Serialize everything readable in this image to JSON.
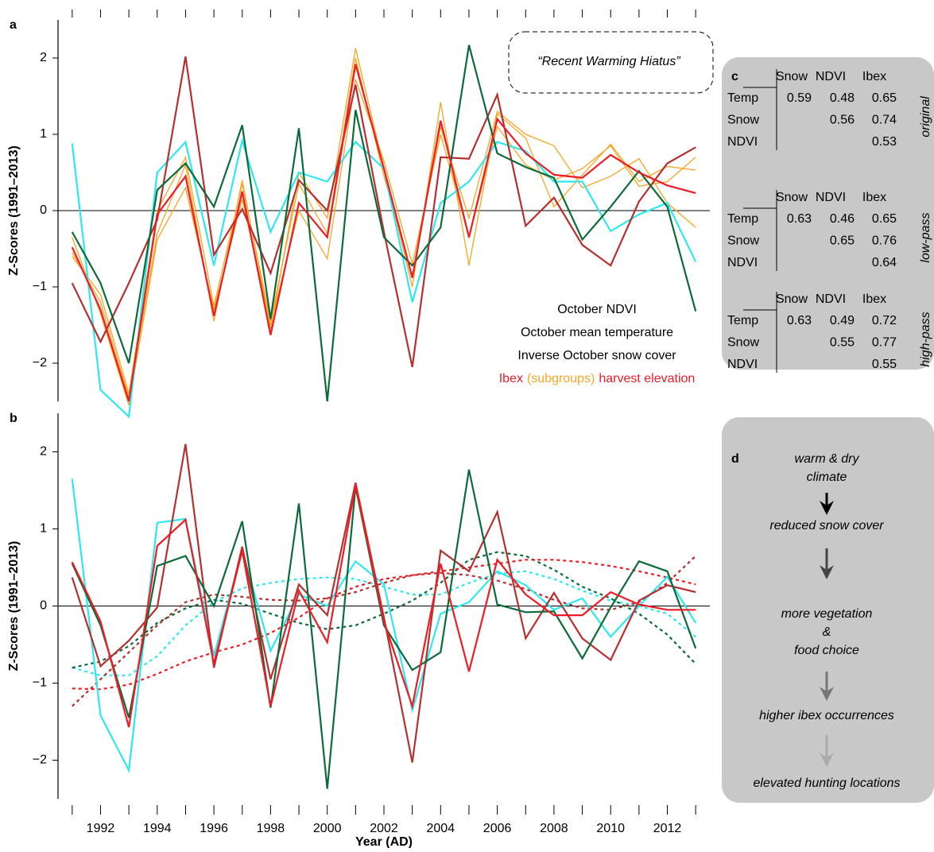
{
  "chart_data": [
    {
      "type": "line",
      "panel_label": "a",
      "ylabel": "Z-Scores (1991–2013)",
      "x": [
        1991,
        1992,
        1993,
        1994,
        1995,
        1996,
        1997,
        1998,
        1999,
        2000,
        2001,
        2002,
        2003,
        2004,
        2005,
        2006,
        2007,
        2008,
        2009,
        2010,
        2011,
        2012,
        2013
      ],
      "xlim": [
        1990.5,
        2013.5
      ],
      "xminorticks": [
        1991,
        1992,
        1993,
        1994,
        1995,
        1996,
        1997,
        1998,
        1999,
        2000,
        2001,
        2002,
        2003,
        2004,
        2005,
        2006,
        2007,
        2008,
        2009,
        2010,
        2011,
        2012,
        2013
      ],
      "ylim": [
        -2.5,
        2.5
      ],
      "yticks": [
        {
          "value": -2,
          "label": "−2"
        },
        {
          "value": -1,
          "label": "−1"
        },
        0,
        1,
        2
      ],
      "zero_line": true,
      "annotation": "“Recent Warming Hiatus”",
      "subgroups": {
        "name": "(subgroups)",
        "color": "#f5a623",
        "series": [
          [
            -0.55,
            -1.2,
            -2.45,
            -0.3,
            0.6,
            -1.45,
            0.4,
            -1.55,
            0.5,
            -0.1,
            2.13,
            0.55,
            -1.0,
            1.42,
            -0.72,
            1.27,
            0.95,
            0.05,
            0.47,
            0.87,
            0.38,
            0.58,
            0.53
          ],
          [
            -0.35,
            -1.35,
            -2.55,
            -0.38,
            0.3,
            -1.3,
            0.15,
            -1.5,
            0.0,
            -0.63,
            1.72,
            0.65,
            -0.7,
            1.0,
            -0.35,
            1.1,
            0.6,
            0.4,
            0.55,
            0.85,
            0.32,
            0.38,
            0.7
          ],
          [
            -0.6,
            -1.1,
            -2.4,
            0.0,
            0.7,
            -1.25,
            0.35,
            -1.45,
            0.35,
            -0.3,
            2.0,
            0.45,
            -0.85,
            1.1,
            -0.1,
            1.3,
            1.0,
            0.85,
            0.3,
            0.45,
            0.68,
            0.1,
            -0.22
          ]
        ]
      },
      "series": [
        {
          "name": "October NDVI",
          "color": "#0b6b3a",
          "values": [
            -0.28,
            -0.95,
            -2.0,
            0.27,
            0.62,
            0.05,
            1.12,
            -1.42,
            1.08,
            -2.5,
            1.32,
            -0.35,
            -0.72,
            -0.22,
            2.17,
            0.75,
            0.57,
            0.43,
            -0.38,
            0.05,
            0.52,
            0.05,
            -1.32
          ]
        },
        {
          "name": "October mean temperature",
          "color": "#b5302f",
          "values": [
            -0.95,
            -1.72,
            -0.95,
            -0.12,
            2.02,
            -0.58,
            0.02,
            -0.82,
            0.4,
            0.0,
            1.65,
            -0.28,
            -2.05,
            0.7,
            0.68,
            1.52,
            -0.2,
            0.17,
            -0.45,
            -0.72,
            0.12,
            0.62,
            0.83
          ]
        },
        {
          "name": "Inverse October snow cover",
          "color": "#2ee8f0",
          "values": [
            0.88,
            -2.35,
            -2.7,
            0.5,
            0.9,
            -0.72,
            0.92,
            -0.28,
            0.5,
            0.38,
            0.9,
            0.55,
            -1.2,
            0.1,
            0.38,
            0.9,
            0.78,
            0.38,
            0.38,
            -0.27,
            -0.05,
            0.1,
            -0.67
          ]
        },
        {
          "name": "Ibex",
          "color": "#ee1c25",
          "values": [
            -0.48,
            -1.3,
            -2.5,
            -0.05,
            0.45,
            -1.38,
            0.25,
            -1.63,
            0.1,
            -0.35,
            1.92,
            0.55,
            -0.88,
            1.18,
            -0.35,
            1.2,
            0.75,
            0.47,
            0.43,
            0.73,
            0.5,
            0.33,
            0.23
          ]
        }
      ],
      "legend_suffix": "harvest elevation"
    },
    {
      "type": "line",
      "panel_label": "b",
      "ylabel": "Z-Scores (1991–2013)",
      "xlabel": "Year (AD)",
      "x": [
        1991,
        1992,
        1993,
        1994,
        1995,
        1996,
        1997,
        1998,
        1999,
        2000,
        2001,
        2002,
        2003,
        2004,
        2005,
        2006,
        2007,
        2008,
        2009,
        2010,
        2011,
        2012,
        2013
      ],
      "xlim": [
        1990.5,
        2013.5
      ],
      "xminorticks": [
        1991,
        1992,
        1993,
        1994,
        1995,
        1996,
        1997,
        1998,
        1999,
        2000,
        2001,
        2002,
        2003,
        2004,
        2005,
        2006,
        2007,
        2008,
        2009,
        2010,
        2011,
        2012,
        2013
      ],
      "xticks": [
        1992,
        1994,
        1996,
        1998,
        2000,
        2002,
        2004,
        2006,
        2008,
        2010,
        2012
      ],
      "ylim": [
        -2.5,
        2.5
      ],
      "yticks": [
        {
          "value": -2,
          "label": "−2"
        },
        {
          "value": -1,
          "label": "−1"
        },
        0,
        1,
        2
      ],
      "zero_line": true,
      "series": [
        {
          "color": "#2ee8f0",
          "dashed": true,
          "values": [
            -0.8,
            -0.9,
            -0.9,
            -0.65,
            -0.25,
            0.05,
            0.23,
            0.3,
            0.35,
            0.37,
            0.35,
            0.25,
            0.15,
            0.15,
            0.3,
            0.42,
            0.45,
            0.35,
            0.2,
            0.07,
            0.0,
            -0.1,
            -0.4
          ]
        },
        {
          "color": "#0b6b3a",
          "dashed": true,
          "values": [
            -0.8,
            -0.72,
            -0.52,
            -0.22,
            -0.03,
            0.08,
            0.03,
            -0.1,
            -0.22,
            -0.3,
            -0.25,
            -0.1,
            0.07,
            0.3,
            0.6,
            0.7,
            0.65,
            0.47,
            0.25,
            0.1,
            -0.1,
            -0.37,
            -0.75
          ]
        },
        {
          "color": "#b5302f",
          "dashed": true,
          "values": [
            -1.3,
            -0.95,
            -0.6,
            -0.25,
            0.05,
            0.15,
            0.12,
            0.08,
            0.07,
            0.1,
            0.18,
            0.3,
            0.4,
            0.43,
            0.4,
            0.33,
            0.22,
            0.08,
            -0.03,
            -0.05,
            0.05,
            0.3,
            0.65
          ]
        },
        {
          "color": "#ee1c25",
          "dashed": true,
          "values": [
            -1.07,
            -1.08,
            -1.02,
            -0.88,
            -0.72,
            -0.6,
            -0.5,
            -0.35,
            -0.15,
            0.1,
            0.25,
            0.35,
            0.4,
            0.45,
            0.5,
            0.55,
            0.6,
            0.6,
            0.57,
            0.52,
            0.45,
            0.37,
            0.28
          ]
        },
        {
          "color": "#2ee8f0",
          "values": [
            1.65,
            -1.42,
            -2.13,
            1.08,
            1.13,
            -0.65,
            0.72,
            -0.58,
            0.15,
            0.0,
            0.58,
            0.28,
            -1.35,
            -0.1,
            0.05,
            0.45,
            0.27,
            -0.05,
            0.1,
            -0.4,
            0.0,
            0.38,
            -0.22
          ]
        },
        {
          "color": "#b5302f",
          "values": [
            0.37,
            -0.78,
            -0.45,
            -0.02,
            2.1,
            -0.8,
            0.77,
            -0.95,
            0.28,
            -0.12,
            1.6,
            -0.15,
            -2.03,
            0.72,
            0.45,
            1.22,
            -0.42,
            0.17,
            -0.42,
            -0.7,
            0.07,
            0.27,
            0.18
          ]
        },
        {
          "color": "#0b6b3a",
          "values": [
            0.55,
            -0.25,
            -1.45,
            0.52,
            0.65,
            0.0,
            1.1,
            -1.32,
            1.33,
            -2.37,
            1.55,
            -0.25,
            -0.83,
            -0.6,
            1.77,
            0.02,
            -0.08,
            -0.07,
            -0.68,
            -0.02,
            0.58,
            0.45,
            -0.55
          ]
        },
        {
          "color": "#ee1c25",
          "values": [
            0.57,
            -0.2,
            -1.57,
            0.78,
            1.12,
            -0.75,
            0.72,
            -1.3,
            0.2,
            -0.47,
            1.57,
            -0.2,
            -1.3,
            0.55,
            -0.85,
            0.6,
            0.15,
            -0.12,
            -0.12,
            0.18,
            0.02,
            -0.05,
            -0.05
          ]
        }
      ]
    }
  ],
  "table": {
    "label": "c",
    "columns": [
      {
        "text": "Snow",
        "color": "#2ee8f0"
      },
      {
        "text": "NDVI",
        "color": "#0b6b3a"
      },
      {
        "text": "Ibex",
        "color": "#ee1c25"
      }
    ],
    "row_labels": [
      {
        "text": "Temp",
        "color": "#b5302f"
      },
      {
        "text": "Snow",
        "color": "#2ee8f0"
      },
      {
        "text": "NDVI",
        "color": "#0b6b3a"
      }
    ],
    "blocks": [
      {
        "name": "original",
        "rows": [
          [
            0.59,
            0.48,
            0.65
          ],
          [
            0.56,
            0.74
          ],
          [
            0.53
          ]
        ]
      },
      {
        "name": "low-pass",
        "rows": [
          [
            0.63,
            0.46,
            0.65
          ],
          [
            0.65,
            0.76
          ],
          [
            0.64
          ]
        ]
      },
      {
        "name": "high-pass",
        "rows": [
          [
            0.63,
            0.49,
            0.72
          ],
          [
            0.55,
            0.77
          ],
          [
            0.55
          ]
        ]
      }
    ]
  },
  "diagram": {
    "label": "d",
    "steps": [
      {
        "lines": [
          "warm & dry",
          "climate"
        ],
        "color": "#b5302f"
      },
      {
        "lines": [
          "reduced snow cover"
        ],
        "color": "#33e6f0"
      },
      {
        "lines": [
          "more vegetation",
          "&",
          "food choice"
        ],
        "color": "#0b6b3a"
      },
      {
        "lines": [
          "higher ibex occurrences"
        ],
        "color": "#f2f2f2"
      },
      {
        "lines": [
          "elevated hunting locations"
        ],
        "color": "#ee1c25"
      }
    ]
  }
}
